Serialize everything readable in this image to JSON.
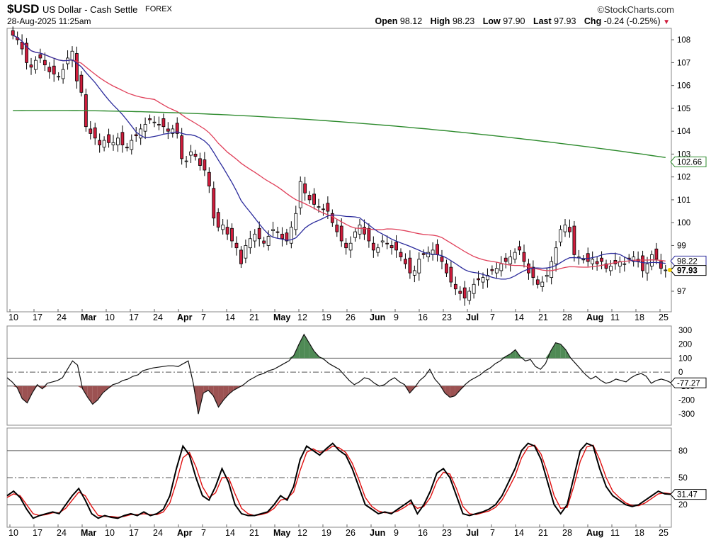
{
  "header": {
    "symbol": "$USD",
    "name": "US Dollar - Cash Settle",
    "exchange": "FOREX",
    "brand": "©StockCharts.com",
    "timestamp": "28-Aug-2025 11:25am",
    "open_label": "Open",
    "open": "98.12",
    "high_label": "High",
    "high": "98.23",
    "low_label": "Low",
    "low": "97.90",
    "last_label": "Last",
    "last": "97.93",
    "chg_label": "Chg",
    "chg": "-0.24 (-0.25%)"
  },
  "colors": {
    "up": "#ffffff",
    "down": "#d01c3c",
    "ma20": "#2b2b9c",
    "ma50": "#e0405a",
    "ma200": "#2e8b2e",
    "cci_pos": "#4f8a55",
    "cci_neg": "#9c5252",
    "stoch_d": "#e01010"
  },
  "chart_data": [
    {
      "type": "candlestick",
      "panel": "price",
      "x_tick_labels": [
        "10",
        "17",
        "24",
        "Mar",
        "10",
        "17",
        "24",
        "Apr",
        "7",
        "14",
        "21",
        "May",
        "12",
        "19",
        "26",
        "Jun",
        "9",
        "16",
        "23",
        "Jul",
        "7",
        "14",
        "21",
        "28",
        "Aug",
        "11",
        "18",
        "25"
      ],
      "x_month_labels": [
        "Mar",
        "Apr",
        "May",
        "Jun",
        "Jul",
        "Aug"
      ],
      "y_ticks": [
        97,
        98,
        99,
        100,
        101,
        102,
        103,
        104,
        105,
        106,
        107,
        108
      ],
      "ylim": [
        96.1,
        108.5
      ],
      "grid": false,
      "series_approx": {
        "close": [
          108.2,
          108.0,
          107.6,
          107.0,
          106.8,
          107.1,
          107.2,
          106.9,
          106.6,
          106.5,
          106.4,
          106.7,
          107.2,
          107.5,
          106.2,
          105.7,
          104.2,
          103.9,
          103.7,
          103.4,
          103.6,
          103.5,
          103.5,
          103.7,
          103.4,
          103.3,
          103.6,
          103.8,
          104.1,
          104.3,
          104.5,
          104.4,
          104.3,
          104.2,
          104.0,
          104.1,
          103.9,
          102.8,
          102.7,
          103.1,
          102.9,
          102.5,
          102.3,
          101.6,
          100.2,
          99.8,
          99.9,
          99.5,
          99.2,
          98.9,
          98.2,
          99.0,
          99.3,
          99.5,
          99.3,
          99.1,
          99.4,
          99.7,
          99.6,
          99.3,
          99.2,
          99.8,
          100.4,
          101.8,
          101.3,
          101.0,
          100.8,
          100.7,
          100.6,
          100.5,
          100.0,
          99.6,
          99.2,
          98.9,
          99.1,
          99.6,
          99.9,
          99.5,
          99.2,
          98.8,
          98.9,
          99.2,
          99.1,
          98.9,
          98.8,
          98.5,
          98.2,
          97.8,
          97.9,
          98.4,
          98.6,
          98.7,
          98.8,
          98.6,
          98.3,
          97.8,
          97.4,
          97.1,
          96.9,
          96.7,
          97.0,
          97.3,
          97.5,
          97.6,
          97.7,
          97.9,
          98.0,
          98.2,
          98.3,
          98.5,
          98.7,
          98.8,
          98.3,
          97.8,
          97.6,
          97.3,
          97.4,
          97.7,
          98.3,
          98.9,
          99.7,
          99.9,
          99.6,
          98.6,
          98.5,
          98.4,
          98.3,
          98.4,
          98.2,
          98.3,
          98.0,
          98.1,
          98.2,
          98.3,
          98.2,
          98.4,
          98.5,
          98.3,
          97.9,
          98.2,
          98.6,
          98.4,
          98.0,
          97.93
        ],
        "ma20_last": 98.22,
        "ma50_last": 98.22,
        "ma200_last": 102.66,
        "last": 97.93
      },
      "price_labels": [
        "102.66",
        "98.22",
        "97.93"
      ]
    },
    {
      "type": "line",
      "panel": "cci",
      "y_ticks": [
        300,
        200,
        100,
        0,
        -100,
        -200,
        -300
      ],
      "ylim": [
        -380,
        330
      ],
      "reference_lines": [
        100,
        0,
        -100
      ],
      "last_label": "-77.27",
      "series": [
        {
          "values": [
            -40,
            -70,
            -110,
            -190,
            -220,
            -150,
            -90,
            -120,
            -80,
            -70,
            -60,
            -40,
            20,
            80,
            50,
            -120,
            -180,
            -230,
            -200,
            -150,
            -120,
            -90,
            -80,
            -60,
            -50,
            -30,
            -20,
            10,
            20,
            30,
            35,
            40,
            45,
            45,
            40,
            60,
            80,
            -80,
            -300,
            -150,
            -130,
            -170,
            -250,
            -200,
            -160,
            -130,
            -110,
            -90,
            -60,
            -40,
            -20,
            -10,
            10,
            20,
            40,
            60,
            80,
            120,
            200,
            270,
            210,
            150,
            110,
            90,
            60,
            40,
            20,
            -20,
            -60,
            -90,
            -70,
            -40,
            -50,
            -80,
            -100,
            -90,
            -60,
            -40,
            -70,
            -90,
            -150,
            -110,
            -60,
            -30,
            20,
            -50,
            -90,
            -150,
            -180,
            -170,
            -130,
            -90,
            -60,
            -40,
            -20,
            10,
            30,
            60,
            80,
            110,
            130,
            160,
            110,
            80,
            90,
            40,
            20,
            60,
            150,
            210,
            200,
            160,
            100,
            60,
            20,
            -20,
            -50,
            -30,
            -60,
            -80,
            -70,
            -50,
            -60,
            -70,
            -40,
            -20,
            -10,
            -30,
            -80,
            -60,
            -50,
            -60,
            -77.27
          ]
        }
      ]
    },
    {
      "type": "line",
      "panel": "stochastic",
      "y_ticks": [
        80,
        50,
        20
      ],
      "ylim": [
        -5,
        105
      ],
      "reference_lines": [
        80,
        50,
        20
      ],
      "last_label": "31.47",
      "series": [
        {
          "values": [
            30,
            35,
            28,
            15,
            5,
            8,
            10,
            12,
            10,
            20,
            30,
            38,
            25,
            10,
            5,
            8,
            6,
            5,
            8,
            10,
            8,
            12,
            8,
            10,
            15,
            30,
            60,
            85,
            75,
            50,
            30,
            25,
            40,
            60,
            45,
            20,
            10,
            8,
            8,
            10,
            12,
            20,
            30,
            25,
            40,
            70,
            85,
            80,
            75,
            82,
            88,
            80,
            75,
            60,
            40,
            20,
            15,
            10,
            12,
            10,
            15,
            20,
            25,
            10,
            20,
            35,
            55,
            60,
            50,
            30,
            10,
            8,
            10,
            12,
            15,
            20,
            30,
            45,
            60,
            80,
            88,
            85,
            70,
            45,
            20,
            10,
            20,
            50,
            80,
            88,
            85,
            60,
            40,
            30,
            25,
            20,
            18,
            20,
            25,
            30,
            35,
            32,
            31.47
          ]
        },
        {
          "values": [
            28,
            32,
            30,
            20,
            10,
            8,
            9,
            11,
            11,
            16,
            25,
            34,
            30,
            18,
            8,
            7,
            7,
            6,
            7,
            9,
            9,
            10,
            9,
            9,
            12,
            22,
            45,
            72,
            78,
            62,
            40,
            28,
            33,
            50,
            50,
            32,
            16,
            10,
            8,
            9,
            11,
            16,
            25,
            27,
            34,
            58,
            78,
            82,
            78,
            80,
            85,
            83,
            78,
            66,
            48,
            28,
            18,
            13,
            11,
            11,
            13,
            17,
            22,
            16,
            18,
            28,
            46,
            56,
            54,
            38,
            18,
            10,
            9,
            11,
            13,
            17,
            25,
            38,
            52,
            72,
            84,
            86,
            76,
            55,
            30,
            16,
            17,
            40,
            68,
            84,
            86,
            70,
            50,
            35,
            28,
            22,
            19,
            19,
            22,
            27,
            32,
            33,
            32
          ]
        }
      ]
    }
  ]
}
